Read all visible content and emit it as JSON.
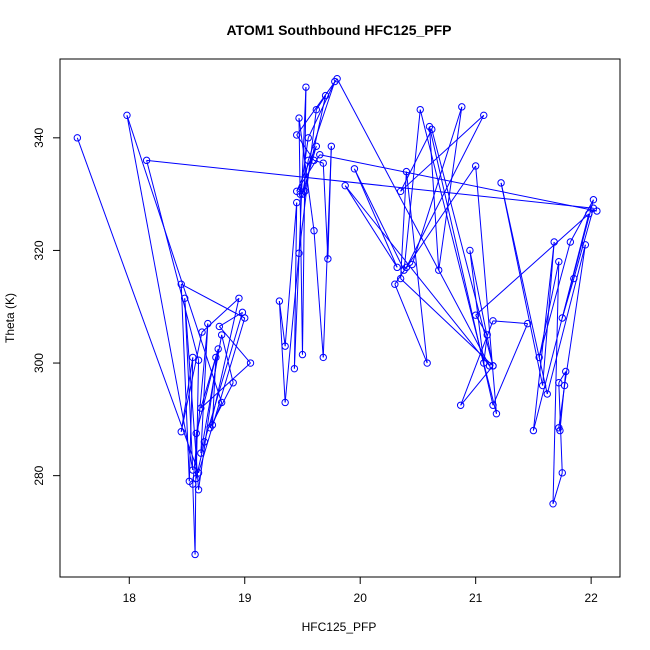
{
  "chart_data": {
    "type": "line",
    "title": "ATOM1 Southbound HFC125_PFP",
    "xlabel": "HFC125_PFP",
    "ylabel": "Theta (K)",
    "xlim": [
      17.4,
      22.25
    ],
    "ylim": [
      262,
      354
    ],
    "x_ticks": [
      18,
      19,
      20,
      21,
      22
    ],
    "y_ticks": [
      280,
      300,
      320,
      340
    ],
    "grid": false,
    "legend": "none",
    "markers": "open-circle",
    "series": [
      {
        "color": "#0000ff",
        "points": [
          [
            17.55,
            340.0
          ],
          [
            18.6,
            280.5
          ],
          [
            19.0,
            308.0
          ],
          [
            18.45,
            314.0
          ],
          [
            18.52,
            279.0
          ],
          [
            18.55,
            301.0
          ],
          [
            18.45,
            287.8
          ],
          [
            18.63,
            305.5
          ],
          [
            18.95,
            311.5
          ],
          [
            18.7,
            288.5
          ],
          [
            18.9,
            296.5
          ],
          [
            18.8,
            305.0
          ],
          [
            18.62,
            284.0
          ],
          [
            18.68,
            307.0
          ],
          [
            18.55,
            278.5
          ],
          [
            18.57,
            266.0
          ],
          [
            18.58,
            287.5
          ],
          [
            18.75,
            301.0
          ],
          [
            18.72,
            289.0
          ],
          [
            18.8,
            293.0
          ],
          [
            17.98,
            344.0
          ],
          [
            18.55,
            281.0
          ],
          [
            18.48,
            311.5
          ],
          [
            18.6,
            277.5
          ],
          [
            18.77,
            302.5
          ],
          [
            18.62,
            292.0
          ],
          [
            19.05,
            300.0
          ],
          [
            18.78,
            306.5
          ],
          [
            18.98,
            309.0
          ],
          [
            18.65,
            286.0
          ],
          [
            18.58,
            279.5
          ],
          [
            18.6,
            300.5
          ],
          [
            18.15,
            336.0
          ],
          [
            22.02,
            327.5
          ],
          [
            21.85,
            315.0
          ],
          [
            21.75,
            308.0
          ],
          [
            22.02,
            329.0
          ],
          [
            21.82,
            321.5
          ],
          [
            21.55,
            301.0
          ],
          [
            21.72,
            318.0
          ],
          [
            21.67,
            275.0
          ],
          [
            21.75,
            280.5
          ],
          [
            21.72,
            296.5
          ],
          [
            21.78,
            298.5
          ],
          [
            21.73,
            288.0
          ],
          [
            21.72,
            288.5
          ],
          [
            21.77,
            296.0
          ],
          [
            21.95,
            321.0
          ],
          [
            21.62,
            294.5
          ],
          [
            21.22,
            332.0
          ],
          [
            21.58,
            296.0
          ],
          [
            21.68,
            321.5
          ],
          [
            21.5,
            288.0
          ],
          [
            21.98,
            326.5
          ],
          [
            21.0,
            308.5
          ],
          [
            21.1,
            305.0
          ],
          [
            21.07,
            300.0
          ],
          [
            20.95,
            320.0
          ],
          [
            21.15,
            299.5
          ],
          [
            20.87,
            292.5
          ],
          [
            21.15,
            307.5
          ],
          [
            21.45,
            307.0
          ],
          [
            21.15,
            292.5
          ],
          [
            20.6,
            342.0
          ],
          [
            20.68,
            316.5
          ],
          [
            20.88,
            345.5
          ],
          [
            20.45,
            317.5
          ],
          [
            20.4,
            317.0
          ],
          [
            21.07,
            344.0
          ],
          [
            20.35,
            330.5
          ],
          [
            20.62,
            341.5
          ],
          [
            21.15,
            299.5
          ],
          [
            20.35,
            315.0
          ],
          [
            20.4,
            334.0
          ],
          [
            20.58,
            300.0
          ],
          [
            20.3,
            314.0
          ],
          [
            21.0,
            335.0
          ],
          [
            21.18,
            291.0
          ],
          [
            20.52,
            345.0
          ],
          [
            20.38,
            316.5
          ],
          [
            19.95,
            334.5
          ],
          [
            20.32,
            317.0
          ],
          [
            19.87,
            331.5
          ],
          [
            21.12,
            299.5
          ],
          [
            19.8,
            350.5
          ],
          [
            19.45,
            340.5
          ],
          [
            19.6,
            336.0
          ],
          [
            19.68,
            335.5
          ],
          [
            19.72,
            318.5
          ],
          [
            19.75,
            338.5
          ],
          [
            19.68,
            301.0
          ],
          [
            19.6,
            323.5
          ],
          [
            19.47,
            343.5
          ],
          [
            19.5,
            301.5
          ],
          [
            19.53,
            349.0
          ],
          [
            19.43,
            299.0
          ],
          [
            19.45,
            328.5
          ],
          [
            19.35,
            303.0
          ],
          [
            19.3,
            311.0
          ],
          [
            19.35,
            293.0
          ],
          [
            19.47,
            319.5
          ],
          [
            19.62,
            345.0
          ],
          [
            19.7,
            347.5
          ],
          [
            19.52,
            330.5
          ],
          [
            19.48,
            330.0
          ],
          [
            19.55,
            340.0
          ],
          [
            19.78,
            350.0
          ],
          [
            19.55,
            336.0
          ],
          [
            19.5,
            330.0
          ],
          [
            19.62,
            338.5
          ],
          [
            19.45,
            330.5
          ],
          [
            19.65,
            337.0
          ],
          [
            22.05,
            327.0
          ]
        ]
      }
    ]
  }
}
